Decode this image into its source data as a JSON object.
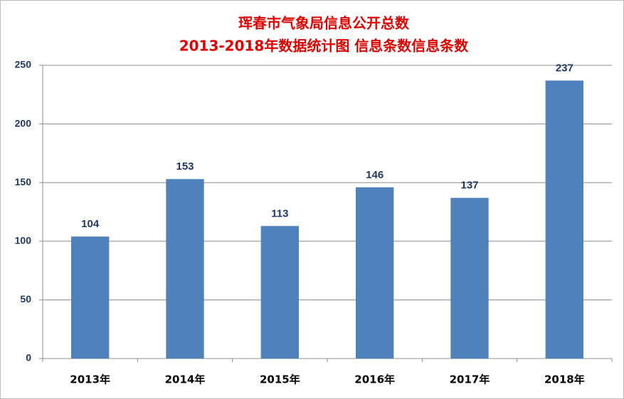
{
  "chart_data": {
    "type": "bar",
    "title": "珲春市气象局信息公开总数",
    "subtitle": "2013-2018年数据统计图 信息条数信息条数",
    "categories": [
      "2013年",
      "2014年",
      "2015年",
      "2016年",
      "2017年",
      "2018年"
    ],
    "values": [
      104,
      153,
      113,
      146,
      137,
      237
    ],
    "color": "#4f81bd",
    "ylim": [
      0,
      250
    ],
    "yticks": [
      0,
      50,
      100,
      150,
      200,
      250
    ],
    "grid": true
  }
}
